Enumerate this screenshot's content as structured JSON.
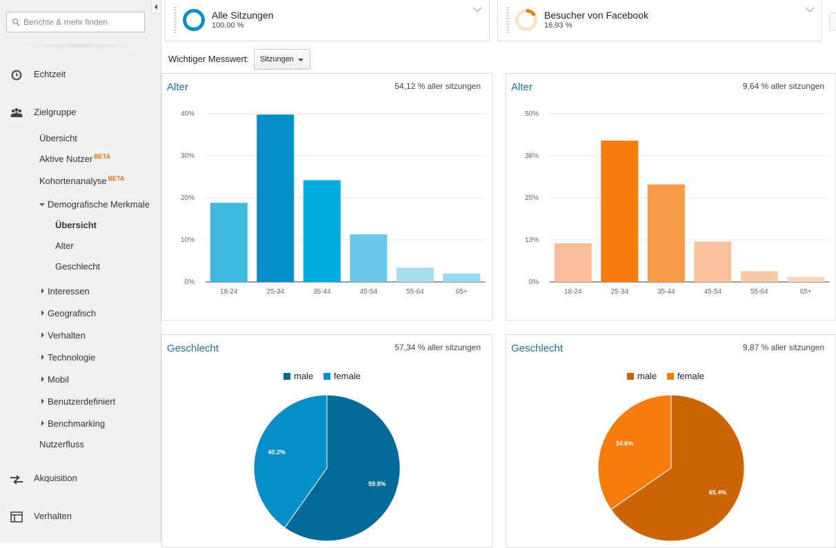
{
  "search": {
    "placeholder": "Berichte & mehr finden"
  },
  "sidebar": {
    "echtzeit": "Echtzeit",
    "zielgruppe": "Zielgruppe",
    "items": {
      "uebersicht": "Übersicht",
      "aktive_nutzer": "Aktive Nutzer",
      "kohortenanalyse": "Kohortenanalyse",
      "beta": "BETA",
      "demografische": "Demografische Merkmale",
      "demo_uebersicht": "Übersicht",
      "alter": "Alter",
      "geschlecht": "Geschlecht",
      "interessen": "Interessen",
      "geografisch": "Geografisch",
      "verhalten": "Verhalten",
      "technologie": "Technologie",
      "mobil": "Mobil",
      "benutzerdefiniert": "Benutzerdefiniert",
      "benchmarking": "Benchmarking",
      "nutzerfluss": "Nutzerfluss"
    },
    "akquisition": "Akquisition",
    "verhalten_main": "Verhalten"
  },
  "segments": [
    {
      "title": "Alle Sitzungen",
      "pct": "100,00 %",
      "fraction": 1.0,
      "color": "#058dc7"
    },
    {
      "title": "Besucher von Facebook",
      "pct": "16,93 %",
      "fraction": 0.1693,
      "color": "#ed7e17"
    }
  ],
  "metric": {
    "label": "Wichtiger Messwert:",
    "value": "Sitzungen"
  },
  "panels": {
    "alter_left": {
      "title": "Alter",
      "stat": "54,12 % aller sitzungen"
    },
    "alter_right": {
      "title": "Alter",
      "stat": "9,64 % aller sitzungen"
    },
    "geschlecht_left": {
      "title": "Geschlecht",
      "stat": "57,34 % aller sitzungen"
    },
    "geschlecht_right": {
      "title": "Geschlecht",
      "stat": "9,87 % aller sitzungen"
    }
  },
  "chart_data": [
    {
      "type": "bar",
      "categories": [
        "18-24",
        "25-34",
        "35-44",
        "45-54",
        "55-64",
        "65+"
      ],
      "values": [
        18.8,
        39.8,
        24.2,
        11.3,
        3.4,
        2.0
      ],
      "yticks": [
        "0%",
        "10%",
        "20%",
        "30%",
        "40%"
      ],
      "ylim": [
        0,
        40
      ],
      "colors": [
        "#3fb8e0",
        "#058dc7",
        "#00aadd",
        "#6ac9e8",
        "#a6dcf1",
        "#98d8f0"
      ],
      "grid": true
    },
    {
      "type": "bar",
      "categories": [
        "18-24",
        "25-34",
        "35-44",
        "45-54",
        "55-64",
        "65+"
      ],
      "values": [
        11.5,
        42.0,
        29.0,
        12.0,
        3.2,
        1.5
      ],
      "yticks": [
        "0%",
        "13%",
        "25%",
        "38%",
        "50%"
      ],
      "ylim": [
        0,
        50
      ],
      "colors": [
        "#f8bf99",
        "#f67d0e",
        "#f79a4a",
        "#f8c29c",
        "#f9c9a6",
        "#fbd5bb"
      ],
      "grid": true
    },
    {
      "type": "pie",
      "slices": [
        {
          "name": "male",
          "value": 59.8,
          "label": "59.8%",
          "color": "#036998"
        },
        {
          "name": "female",
          "value": 40.2,
          "label": "40.2%",
          "color": "#058dc7"
        }
      ],
      "legend": "top"
    },
    {
      "type": "pie",
      "slices": [
        {
          "name": "male",
          "value": 65.4,
          "label": "65.4%",
          "color": "#c96400"
        },
        {
          "name": "female",
          "value": 34.6,
          "label": "34.6%",
          "color": "#f67d0e"
        }
      ],
      "legend": "top"
    }
  ]
}
